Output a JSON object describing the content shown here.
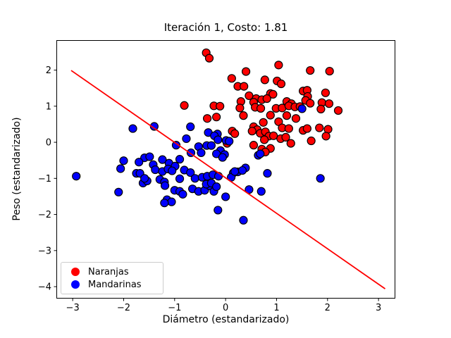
{
  "title": "Iteración 1, Costo: 1.81",
  "axes": {
    "xlabel": "Diámetro (estandarizado)",
    "ylabel": "Peso (estandarizado)"
  },
  "legend": {
    "items": [
      {
        "label": "Naranjas",
        "color": "#ff0000"
      },
      {
        "label": "Mandarinas",
        "color": "#0000ff"
      }
    ]
  },
  "colors": {
    "boundary_line": "#ff0000",
    "marker_edge": "#000000",
    "axes_frame": "#000000",
    "background": "#ffffff"
  },
  "chart_data": {
    "type": "scatter",
    "title": "Iteración 1, Costo: 1.81",
    "xlabel": "Diámetro (estandarizado)",
    "ylabel": "Peso (estandarizado)",
    "xlim": [
      -3.32,
      3.33
    ],
    "ylim": [
      -4.33,
      2.83
    ],
    "xticks": [
      -3,
      -2,
      -1,
      0,
      1,
      2,
      3
    ],
    "yticks": [
      -4,
      -3,
      -2,
      -1,
      0,
      1,
      2
    ],
    "grid": false,
    "legend_position": "lower-left",
    "series": [
      {
        "name": "Naranjas",
        "color": "#ff0000",
        "points": [
          [
            -0.38,
            2.48
          ],
          [
            -0.32,
            2.33
          ],
          [
            1.04,
            2.14
          ],
          [
            0.4,
            1.96
          ],
          [
            1.66,
            1.99
          ],
          [
            2.04,
            1.97
          ],
          [
            0.12,
            1.77
          ],
          [
            0.77,
            1.73
          ],
          [
            1.01,
            1.7
          ],
          [
            1.09,
            1.62
          ],
          [
            0.24,
            1.55
          ],
          [
            0.36,
            1.55
          ],
          [
            1.52,
            1.42
          ],
          [
            1.6,
            1.44
          ],
          [
            1.96,
            1.37
          ],
          [
            0.46,
            1.29
          ],
          [
            0.88,
            1.35
          ],
          [
            0.93,
            1.33
          ],
          [
            0.6,
            1.21
          ],
          [
            0.71,
            1.18
          ],
          [
            0.81,
            1.21
          ],
          [
            0.3,
            1.13
          ],
          [
            0.55,
            1.11
          ],
          [
            1.2,
            1.13
          ],
          [
            1.29,
            1.07
          ],
          [
            1.61,
            1.27
          ],
          [
            1.57,
            1.16
          ],
          [
            1.66,
            1.08
          ],
          [
            1.89,
            1.1
          ],
          [
            2.03,
            1.07
          ],
          [
            -0.81,
            1.02
          ],
          [
            -0.23,
            1.01
          ],
          [
            -0.11,
            1.0
          ],
          [
            0.28,
            0.95
          ],
          [
            0.58,
            0.97
          ],
          [
            0.69,
            0.94
          ],
          [
            0.99,
            0.94
          ],
          [
            1.11,
            0.95
          ],
          [
            1.24,
            1.01
          ],
          [
            1.36,
            0.98
          ],
          [
            1.46,
            0.99
          ],
          [
            1.87,
            0.92
          ],
          [
            2.21,
            0.88
          ],
          [
            -0.36,
            0.66
          ],
          [
            -0.18,
            0.7
          ],
          [
            0.35,
            0.74
          ],
          [
            0.88,
            0.75
          ],
          [
            1.2,
            0.74
          ],
          [
            1.38,
            0.66
          ],
          [
            0.74,
            0.55
          ],
          [
            1.04,
            0.57
          ],
          [
            0.55,
            0.43
          ],
          [
            0.62,
            0.35
          ],
          [
            1.11,
            0.4
          ],
          [
            1.24,
            0.38
          ],
          [
            1.52,
            0.33
          ],
          [
            1.6,
            0.38
          ],
          [
            1.84,
            0.4
          ],
          [
            2.01,
            0.36
          ],
          [
            1.97,
            0.17
          ],
          [
            0.13,
            0.31
          ],
          [
            0.18,
            0.24
          ],
          [
            0.52,
            0.31
          ],
          [
            0.68,
            0.25
          ],
          [
            0.78,
            0.29
          ],
          [
            0.85,
            0.17
          ],
          [
            0.94,
            0.18
          ],
          [
            1.08,
            0.1
          ],
          [
            1.18,
            0.14
          ],
          [
            0.76,
            0.07
          ],
          [
            1.28,
            -0.03
          ],
          [
            1.68,
            0.04
          ],
          [
            0.03,
            -0.03
          ],
          [
            0.55,
            -0.08
          ],
          [
            0.71,
            -0.19
          ],
          [
            0.88,
            -0.17
          ],
          [
            0.78,
            -0.27
          ]
        ]
      },
      {
        "name": "Mandarinas",
        "color": "#0000ff",
        "points": [
          [
            -2.93,
            -0.94
          ],
          [
            -1.82,
            0.38
          ],
          [
            -1.4,
            0.44
          ],
          [
            -0.69,
            0.43
          ],
          [
            -0.77,
            0.1
          ],
          [
            -0.34,
            0.27
          ],
          [
            -0.16,
            0.23
          ],
          [
            -0.22,
            0.18
          ],
          [
            -0.15,
            0.07
          ],
          [
            0.01,
            0.05
          ],
          [
            0.07,
            0.03
          ],
          [
            -0.97,
            -0.08
          ],
          [
            -0.53,
            -0.12
          ],
          [
            -0.37,
            -0.09
          ],
          [
            -0.28,
            -0.09
          ],
          [
            -0.68,
            -0.29
          ],
          [
            -0.48,
            -0.29
          ],
          [
            -0.1,
            -0.23
          ],
          [
            -0.18,
            -0.32
          ],
          [
            -0.02,
            -0.34
          ],
          [
            -0.06,
            -0.42
          ],
          [
            -1.59,
            -0.43
          ],
          [
            -1.49,
            -0.4
          ],
          [
            -1.24,
            -0.48
          ],
          [
            -1.11,
            -0.58
          ],
          [
            -0.9,
            -0.47
          ],
          [
            -1.42,
            -0.62
          ],
          [
            -0.99,
            -0.66
          ],
          [
            -2.0,
            -0.51
          ],
          [
            -1.7,
            -0.55
          ],
          [
            -2.06,
            -0.73
          ],
          [
            -1.75,
            -0.86
          ],
          [
            -1.68,
            -0.86
          ],
          [
            -1.62,
            -1.13
          ],
          [
            -2.1,
            -1.38
          ],
          [
            -1.38,
            -0.76
          ],
          [
            -1.24,
            -0.81
          ],
          [
            -1.13,
            -0.74
          ],
          [
            -1.05,
            -0.79
          ],
          [
            -0.81,
            -0.77
          ],
          [
            -0.69,
            -0.84
          ],
          [
            -0.6,
            -1.0
          ],
          [
            -0.46,
            -0.97
          ],
          [
            -0.36,
            -0.94
          ],
          [
            -0.25,
            -0.9
          ],
          [
            -0.14,
            -0.94
          ],
          [
            -1.29,
            -1.03
          ],
          [
            -1.2,
            -1.1
          ],
          [
            -1.19,
            -1.2
          ],
          [
            -1.54,
            -1.07
          ],
          [
            -1.59,
            -1.0
          ],
          [
            -0.9,
            -1.01
          ],
          [
            -1.0,
            -1.33
          ],
          [
            -0.9,
            -1.36
          ],
          [
            -0.84,
            -1.44
          ],
          [
            -0.65,
            -1.29
          ],
          [
            -0.53,
            -1.36
          ],
          [
            -0.41,
            -1.33
          ],
          [
            -0.31,
            -1.21
          ],
          [
            -0.23,
            -1.36
          ],
          [
            -0.38,
            -1.16
          ],
          [
            -0.28,
            -1.13
          ],
          [
            -0.18,
            -1.23
          ],
          [
            -1.15,
            -1.59
          ],
          [
            -1.06,
            -1.65
          ],
          [
            -1.2,
            -1.68
          ],
          [
            0.0,
            -1.51
          ],
          [
            -0.15,
            -1.88
          ],
          [
            0.64,
            -0.36
          ],
          [
            0.68,
            -0.32
          ],
          [
            0.39,
            -0.71
          ],
          [
            0.15,
            -0.85
          ],
          [
            0.24,
            -0.82
          ],
          [
            0.33,
            -0.78
          ],
          [
            0.11,
            -0.97
          ],
          [
            0.18,
            -0.81
          ],
          [
            0.82,
            -0.86
          ],
          [
            0.46,
            -1.31
          ],
          [
            0.7,
            -1.36
          ],
          [
            0.35,
            -2.16
          ],
          [
            1.86,
            -1.0
          ],
          [
            1.5,
            0.93
          ]
        ]
      }
    ],
    "boundary_line": {
      "name": "decision-boundary",
      "color": "#ff0000",
      "x1": -3.03,
      "y1": 1.99,
      "x2": 3.13,
      "y2": -4.06
    }
  }
}
